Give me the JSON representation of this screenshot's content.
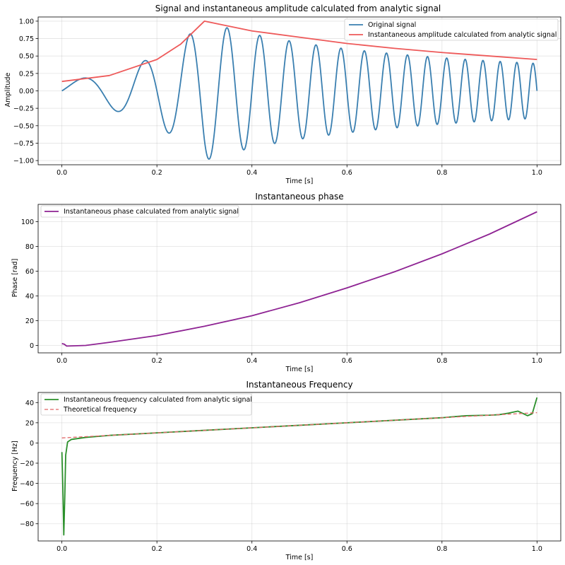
{
  "colors": {
    "signal": "#3a7fb0",
    "amplitude": "#ee5a5a",
    "phase": "#8e2393",
    "frequency": "#2a8f2a",
    "theoretical": "#e06666"
  },
  "chart_data": [
    {
      "type": "line",
      "title": "Signal and instantaneous amplitude calculated from analytic signal",
      "xlabel": "Time [s]",
      "ylabel": "Amplitude",
      "xlim": [
        -0.05,
        1.05
      ],
      "ylim": [
        -1.06,
        1.06
      ],
      "xticks": [
        0.0,
        0.2,
        0.4,
        0.6,
        0.8,
        1.0
      ],
      "xtick_labels": [
        "0.0",
        "0.2",
        "0.4",
        "0.6",
        "0.8",
        "1.0"
      ],
      "yticks": [
        -1.0,
        -0.75,
        -0.5,
        -0.25,
        0.0,
        0.25,
        0.5,
        0.75,
        1.0
      ],
      "ytick_labels": [
        "−1.00",
        "−0.75",
        "−0.50",
        "−0.25",
        "0.00",
        "0.25",
        "0.50",
        "0.75",
        "1.00"
      ],
      "grid": true,
      "legend_position": "top-right",
      "series": [
        {
          "name": "Original signal",
          "color_key": "signal",
          "style": "solid",
          "formula": "amplitude envelope times sin(2*pi*(5*t + 12.5*t^2))",
          "x_range": [
            0.0,
            1.0
          ]
        },
        {
          "name": "Instantaneous amplitude calculated from analytic signal",
          "color_key": "amplitude",
          "style": "solid",
          "x": [
            0.0,
            0.1,
            0.2,
            0.25,
            0.3,
            0.4,
            0.5,
            0.6,
            0.7,
            0.8,
            0.9,
            1.0
          ],
          "y": [
            0.135,
            0.22,
            0.45,
            0.67,
            1.0,
            0.86,
            0.77,
            0.68,
            0.61,
            0.55,
            0.5,
            0.45
          ]
        }
      ]
    },
    {
      "type": "line",
      "title": "Instantaneous phase",
      "xlabel": "Time [s]",
      "ylabel": "Phase [rad]",
      "xlim": [
        -0.05,
        1.05
      ],
      "ylim": [
        -6,
        114
      ],
      "xticks": [
        0.0,
        0.2,
        0.4,
        0.6,
        0.8,
        1.0
      ],
      "xtick_labels": [
        "0.0",
        "0.2",
        "0.4",
        "0.6",
        "0.8",
        "1.0"
      ],
      "yticks": [
        0,
        20,
        40,
        60,
        80,
        100
      ],
      "ytick_labels": [
        "0",
        "20",
        "40",
        "60",
        "80",
        "100"
      ],
      "grid": true,
      "legend_position": "top-left",
      "series": [
        {
          "name": "Instantaneous phase calculated from analytic signal",
          "color_key": "phase",
          "style": "solid",
          "x": [
            0.0,
            0.005,
            0.01,
            0.05,
            0.1,
            0.2,
            0.3,
            0.4,
            0.5,
            0.6,
            0.7,
            0.8,
            0.9,
            1.0
          ],
          "y": [
            1.5,
            1.0,
            -0.5,
            0.0,
            2.5,
            8.0,
            15.5,
            24.0,
            34.5,
            46.5,
            59.5,
            74.0,
            90.0,
            108.0
          ]
        }
      ]
    },
    {
      "type": "line",
      "title": "Instantaneous Frequency",
      "xlabel": "Time [s]",
      "ylabel": "Frequency [Hz]",
      "xlim": [
        -0.05,
        1.05
      ],
      "ylim": [
        -97,
        50
      ],
      "xticks": [
        0.0,
        0.2,
        0.4,
        0.6,
        0.8,
        1.0
      ],
      "xtick_labels": [
        "0.0",
        "0.2",
        "0.4",
        "0.6",
        "0.8",
        "1.0"
      ],
      "yticks": [
        -80,
        -60,
        -40,
        -20,
        0,
        20,
        40
      ],
      "ytick_labels": [
        "−80",
        "−60",
        "−40",
        "−20",
        "0",
        "20",
        "40"
      ],
      "grid": true,
      "legend_position": "top-left",
      "series": [
        {
          "name": "Instantaneous frequency calculated from analytic signal",
          "color_key": "frequency",
          "style": "solid",
          "x": [
            0.0,
            0.002,
            0.004,
            0.006,
            0.008,
            0.012,
            0.02,
            0.05,
            0.1,
            0.2,
            0.3,
            0.4,
            0.5,
            0.6,
            0.7,
            0.8,
            0.85,
            0.9,
            0.92,
            0.94,
            0.96,
            0.98,
            0.99,
            1.0
          ],
          "y": [
            -9,
            -45,
            -91,
            -55,
            -12,
            1,
            3.5,
            5.5,
            7.5,
            10,
            12.5,
            15,
            17.5,
            20,
            22.5,
            25,
            27,
            27.5,
            28,
            29.5,
            31.5,
            27,
            29,
            45
          ]
        },
        {
          "name": "Theoretical frequency",
          "color_key": "theoretical",
          "style": "dashed",
          "x": [
            0.0,
            1.0
          ],
          "y": [
            5,
            30
          ]
        }
      ]
    }
  ]
}
